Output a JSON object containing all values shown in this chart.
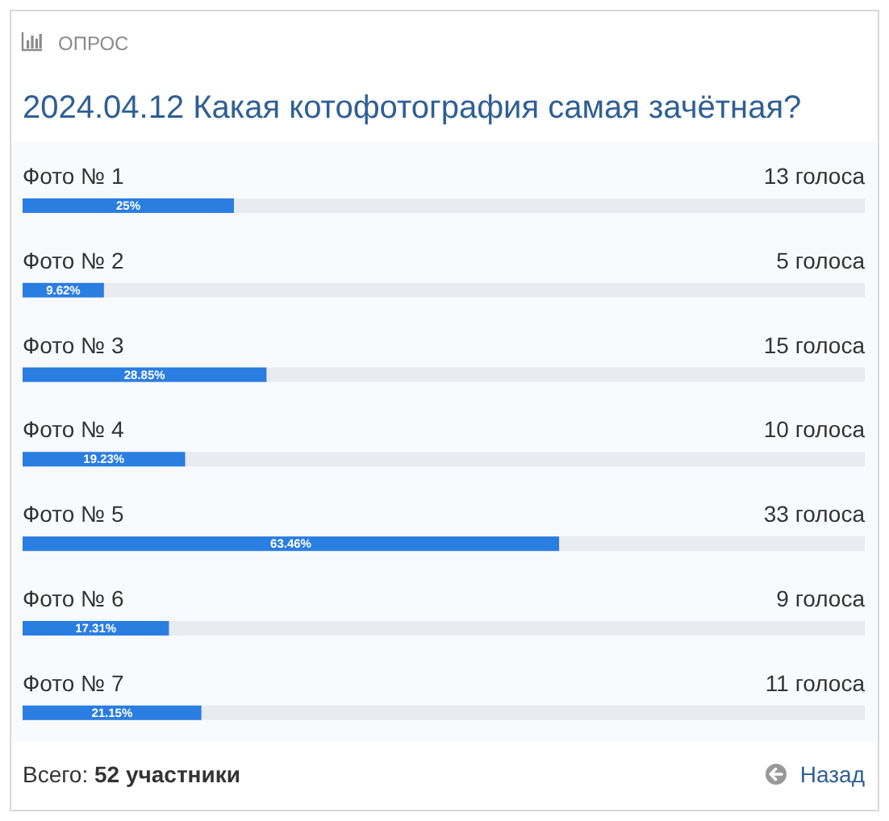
{
  "chart_data": {
    "type": "bar",
    "orientation": "horizontal",
    "subtitle": "ОПРОС",
    "title": "2024.04.12 Какая котофотография самая зачётная?",
    "categories": [
      "Фото № 1",
      "Фото № 2",
      "Фото № 3",
      "Фото № 4",
      "Фото № 5",
      "Фото № 6",
      "Фото № 7"
    ],
    "values": [
      25,
      9.62,
      28.85,
      19.23,
      63.46,
      17.31,
      21.15
    ],
    "value_labels": [
      "25%",
      "9.62%",
      "28.85%",
      "19.23%",
      "63.46%",
      "17.31%",
      "21.15%"
    ],
    "color": "#2a7de1",
    "xlim": [
      0,
      100
    ],
    "annotations": [
      "13 голоса",
      "5 голоса",
      "15 голоса",
      "10 голоса",
      "33 голоса",
      "9 голоса",
      "11 голоса",
      "Всего: 52 участники",
      "Назад"
    ]
  }
}
